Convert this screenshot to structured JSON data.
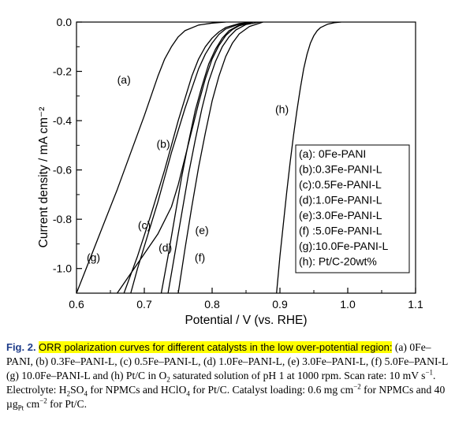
{
  "chart_data": {
    "type": "line",
    "title": "",
    "xlabel": "Potential / V (vs. RHE)",
    "ylabel": "Current density / mA cm⁻²",
    "xlim": [
      0.6,
      1.1
    ],
    "ylim": [
      -1.1,
      0.0
    ],
    "x_ticks": [
      "0.6",
      "0.7",
      "0.8",
      "0.9",
      "1.0",
      "1.1"
    ],
    "y_ticks": [
      "0.0",
      "-0.2",
      "-0.4",
      "-0.6",
      "-0.8",
      "-1.0"
    ],
    "y_tick_values": [
      0.0,
      -0.2,
      -0.4,
      -0.6,
      -0.8,
      -1.0
    ],
    "grid": false,
    "legend_position": "right",
    "legend": [
      "(a): 0Fe-PANI",
      "(b):0.3Fe-PANI-L",
      "(c):0.5Fe-PANI-L",
      "(d):1.0Fe-PANI-L",
      "(e):3.0Fe-PANI-L",
      "(f) :5.0Fe-PANI-L",
      "(g):10.0Fe-PANI-L",
      "(h): Pt/C-20wt%"
    ],
    "series": [
      {
        "name": "(a)",
        "x": [
          0.6,
          0.62,
          0.64,
          0.66,
          0.68,
          0.7,
          0.71,
          0.72,
          0.73,
          0.74,
          0.75,
          0.76,
          0.78,
          0.8,
          0.82
        ],
        "y": [
          -1.1,
          -0.96,
          -0.82,
          -0.68,
          -0.53,
          -0.38,
          -0.3,
          -0.22,
          -0.15,
          -0.1,
          -0.06,
          -0.035,
          -0.012,
          -0.004,
          0.0
        ]
      },
      {
        "name": "(b)",
        "x": [
          0.67,
          0.69,
          0.71,
          0.72,
          0.73,
          0.74,
          0.75,
          0.76,
          0.77,
          0.78,
          0.79,
          0.8,
          0.81,
          0.82,
          0.84,
          0.86
        ],
        "y": [
          -1.1,
          -0.95,
          -0.78,
          -0.69,
          -0.6,
          -0.5,
          -0.4,
          -0.31,
          -0.22,
          -0.15,
          -0.1,
          -0.065,
          -0.04,
          -0.022,
          -0.006,
          0.0
        ]
      },
      {
        "name": "(c)",
        "x": [
          0.68,
          0.69,
          0.7,
          0.71,
          0.72,
          0.73,
          0.74,
          0.75,
          0.76,
          0.77,
          0.78,
          0.79,
          0.8,
          0.81,
          0.82,
          0.84,
          0.86
        ],
        "y": [
          -1.1,
          -1.0,
          -0.91,
          -0.82,
          -0.73,
          -0.63,
          -0.53,
          -0.44,
          -0.35,
          -0.27,
          -0.19,
          -0.13,
          -0.085,
          -0.05,
          -0.028,
          -0.008,
          0.0
        ]
      },
      {
        "name": "(d)",
        "x": [
          0.725,
          0.735,
          0.745,
          0.755,
          0.765,
          0.775,
          0.785,
          0.795,
          0.805,
          0.815,
          0.825,
          0.84,
          0.86
        ],
        "y": [
          -1.1,
          -0.95,
          -0.79,
          -0.63,
          -0.49,
          -0.36,
          -0.26,
          -0.17,
          -0.11,
          -0.065,
          -0.035,
          -0.012,
          0.0
        ]
      },
      {
        "name": "(e)",
        "x": [
          0.735,
          0.745,
          0.755,
          0.765,
          0.775,
          0.785,
          0.795,
          0.805,
          0.815,
          0.825,
          0.835,
          0.85,
          0.87
        ],
        "y": [
          -1.1,
          -0.94,
          -0.78,
          -0.62,
          -0.48,
          -0.35,
          -0.24,
          -0.16,
          -0.1,
          -0.06,
          -0.032,
          -0.01,
          0.0
        ]
      },
      {
        "name": "(f)",
        "x": [
          0.75,
          0.76,
          0.77,
          0.78,
          0.79,
          0.8,
          0.81,
          0.82,
          0.83,
          0.84,
          0.855,
          0.875
        ],
        "y": [
          -1.1,
          -0.92,
          -0.75,
          -0.59,
          -0.45,
          -0.32,
          -0.22,
          -0.14,
          -0.085,
          -0.048,
          -0.018,
          0.0
        ]
      },
      {
        "name": "(g)",
        "x": [
          0.66,
          0.68,
          0.7,
          0.72,
          0.74,
          0.75,
          0.76,
          0.77,
          0.78,
          0.79,
          0.8,
          0.81,
          0.82,
          0.83,
          0.84,
          0.86
        ],
        "y": [
          -1.1,
          -1.02,
          -0.94,
          -0.86,
          -0.75,
          -0.66,
          -0.55,
          -0.44,
          -0.33,
          -0.23,
          -0.15,
          -0.095,
          -0.055,
          -0.03,
          -0.015,
          0.0
        ]
      },
      {
        "name": "(h)",
        "x": [
          0.895,
          0.9,
          0.905,
          0.91,
          0.915,
          0.92,
          0.925,
          0.93,
          0.935,
          0.94,
          0.945,
          0.95,
          0.955,
          0.96,
          0.97,
          0.98,
          0.99
        ],
        "y": [
          -1.1,
          -0.95,
          -0.82,
          -0.69,
          -0.57,
          -0.46,
          -0.36,
          -0.27,
          -0.19,
          -0.13,
          -0.085,
          -0.055,
          -0.035,
          -0.022,
          -0.009,
          -0.003,
          0.0
        ]
      }
    ],
    "annotations": [
      {
        "text": "(a)",
        "x": 0.67,
        "y": -0.25
      },
      {
        "text": "(b)",
        "x": 0.728,
        "y": -0.51
      },
      {
        "text": "(c)",
        "x": 0.7,
        "y": -0.84
      },
      {
        "text": "(d)",
        "x": 0.731,
        "y": -0.93
      },
      {
        "text": "(e)",
        "x": 0.785,
        "y": -0.86
      },
      {
        "text": "(f)",
        "x": 0.782,
        "y": -0.97
      },
      {
        "text": "(g)",
        "x": 0.625,
        "y": -0.97
      },
      {
        "text": "(h)",
        "x": 0.903,
        "y": -0.37
      }
    ]
  },
  "caption": {
    "label": "Fig. 2.",
    "highlight": "ORR polarization curves for different catalysts in the low over-potential region:",
    "body_parts": [
      {
        "t": " (a) 0Fe–PANI, (b) 0.3Fe–PANI-L, (c) 0.5Fe–PANI-L, (d) 1.0Fe–PANI-L, (e) 3.0Fe–PANI-L, (f) 5.0Fe–PANI-L (g) 10.0Fe–PANI-L and (h) Pt/C in O"
      },
      {
        "t": "2",
        "sub": true
      },
      {
        "t": " saturated solution of pH 1 at 1000 rpm. Scan rate: 10 mV s"
      },
      {
        "t": "−1",
        "sup": true
      },
      {
        "t": ". Electrolyte: H"
      },
      {
        "t": "2",
        "sub": true
      },
      {
        "t": "SO"
      },
      {
        "t": "4",
        "sub": true
      },
      {
        "t": " for NPMCs and HClO"
      },
      {
        "t": "4",
        "sub": true
      },
      {
        "t": " for Pt/C. Catalyst loading: 0.6 mg cm"
      },
      {
        "t": "−2",
        "sup": true
      },
      {
        "t": " for NPMCs and 40 µg"
      },
      {
        "t": "Pt",
        "sub": true
      },
      {
        "t": " cm"
      },
      {
        "t": "−2",
        "sup": true
      },
      {
        "t": " for Pt/C."
      }
    ]
  }
}
